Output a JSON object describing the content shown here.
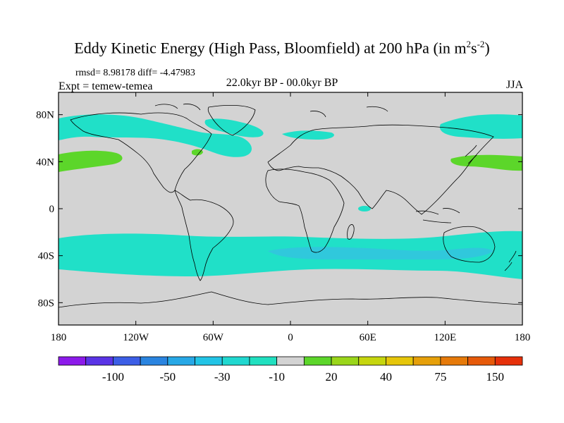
{
  "title": {
    "main": "Eddy Kinetic Energy (High Pass, Bloomfield) at 200 hPa (in m",
    "unit_sup1": "2",
    "unit_mid": "s",
    "unit_sup2": "-2",
    "close": ")"
  },
  "stats": "rmsd= 8.98178 diff= -4.47983",
  "experiment": "Expt = temew-temea",
  "period": "22.0kyr BP - 00.0kyr BP",
  "season": "JJA",
  "colors": {
    "land_ocean_background": "#d3d3d3",
    "cyan_negative": "#20e0c8",
    "blue_negative": "#30c8dc",
    "green_positive": "#5cd62a",
    "coastline": "#000000"
  },
  "axes": {
    "lat_labels": [
      "80N",
      "40N",
      "0",
      "40S",
      "80S"
    ],
    "lon_labels": [
      "180",
      "120W",
      "60W",
      "0",
      "60E",
      "120E",
      "180"
    ]
  },
  "colorbar": {
    "swatches": [
      "#8c1aea",
      "#5a34e6",
      "#3c5ee6",
      "#2a84e0",
      "#27a8e6",
      "#22c4e6",
      "#20d8d0",
      "#20e0c0",
      "#d3d3d3",
      "#5cd62a",
      "#9ad61a",
      "#c6d60e",
      "#e6c60a",
      "#e6a00a",
      "#e67a0a",
      "#e65a0a",
      "#e6300a"
    ],
    "labels": [
      "-100",
      "-50",
      "-30",
      "-10",
      "20",
      "40",
      "75",
      "150"
    ]
  },
  "anomaly_regions": [
    {
      "name": "north-pacific-atlantic-cyan",
      "category": "-10"
    },
    {
      "name": "north-atlantic-cyan",
      "category": "-10"
    },
    {
      "name": "east-siberia-cyan",
      "category": "-10"
    },
    {
      "name": "north-pacific-green",
      "category": "20"
    },
    {
      "name": "southern-ocean-cyan",
      "category": "-10"
    },
    {
      "name": "south-indian-blue",
      "category": "-30"
    }
  ]
}
